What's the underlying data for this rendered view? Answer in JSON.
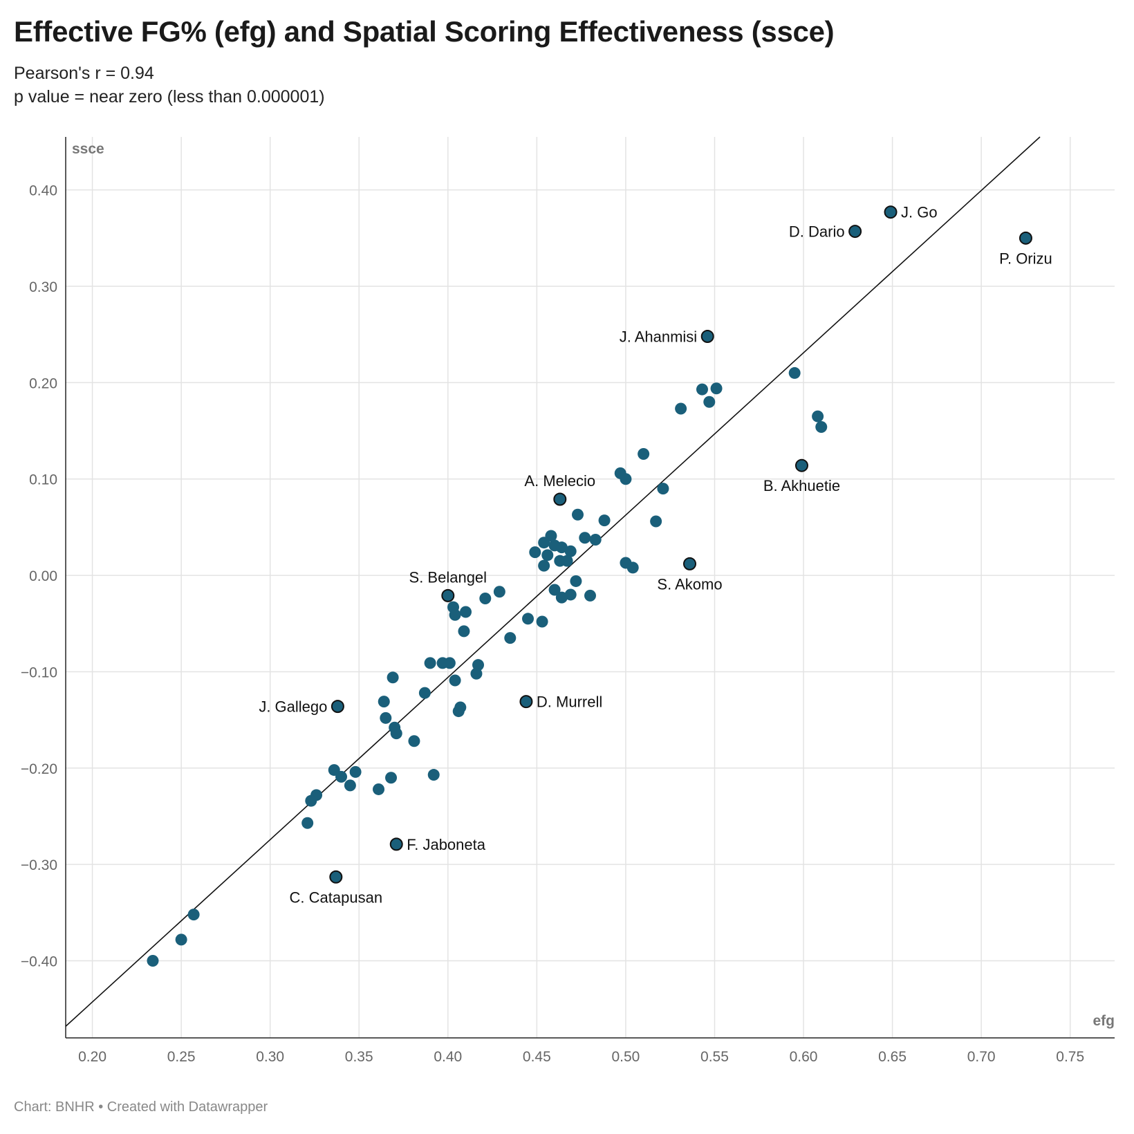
{
  "header": {
    "title": "Effective FG% (efg) and Spatial Scoring Effectiveness (ssce)",
    "subtitle_1": "Pearson's r = 0.94",
    "subtitle_2": "p value = near zero (less than 0.000001)"
  },
  "footer": {
    "source": "Chart: BNHR • Created with Datawrapper"
  },
  "colors": {
    "point": "#1a5f7a",
    "highlight_stroke": "#111111",
    "grid": "#e3e3e3",
    "trend": "#111111"
  },
  "chart_data": {
    "type": "scatter",
    "xlabel": "efg",
    "ylabel": "ssce",
    "xlim": [
      0.185,
      0.775
    ],
    "ylim": [
      -0.48,
      0.455
    ],
    "x_ticks": [
      0.2,
      0.25,
      0.3,
      0.35,
      0.4,
      0.45,
      0.5,
      0.55,
      0.6,
      0.65,
      0.7,
      0.75
    ],
    "x_tick_labels": [
      "0.20",
      "0.25",
      "0.30",
      "0.35",
      "0.40",
      "0.45",
      "0.50",
      "0.55",
      "0.60",
      "0.65",
      "0.70",
      "0.75"
    ],
    "y_ticks": [
      0.4,
      0.3,
      0.2,
      0.1,
      0.0,
      -0.1,
      -0.2,
      -0.3,
      -0.4
    ],
    "y_tick_labels": [
      "0.40",
      "0.30",
      "0.20",
      "0.10",
      "0.00",
      "−0.10",
      "−0.20",
      "−0.30",
      "−0.40"
    ],
    "grid": true,
    "trend_line": {
      "x": [
        0.185,
        0.733
      ],
      "y": [
        -0.468,
        0.455
      ]
    },
    "labeled_points": [
      {
        "name": "J. Go",
        "x": 0.649,
        "y": 0.377,
        "label_pos": "right"
      },
      {
        "name": "D. Dario",
        "x": 0.629,
        "y": 0.357,
        "label_pos": "left"
      },
      {
        "name": "P. Orizu",
        "x": 0.725,
        "y": 0.35,
        "label_pos": "below"
      },
      {
        "name": "J. Ahanmisi",
        "x": 0.546,
        "y": 0.248,
        "label_pos": "left"
      },
      {
        "name": "B. Akhuetie",
        "x": 0.599,
        "y": 0.114,
        "label_pos": "below"
      },
      {
        "name": "A. Melecio",
        "x": 0.463,
        "y": 0.079,
        "label_pos": "above"
      },
      {
        "name": "S. Akomo",
        "x": 0.536,
        "y": 0.012,
        "label_pos": "below"
      },
      {
        "name": "S. Belangel",
        "x": 0.4,
        "y": -0.021,
        "label_pos": "above"
      },
      {
        "name": "D. Murrell",
        "x": 0.444,
        "y": -0.131,
        "label_pos": "right"
      },
      {
        "name": "J. Gallego",
        "x": 0.338,
        "y": -0.136,
        "label_pos": "left"
      },
      {
        "name": "F. Jaboneta",
        "x": 0.371,
        "y": -0.279,
        "label_pos": "right"
      },
      {
        "name": "C. Catapusan",
        "x": 0.337,
        "y": -0.313,
        "label_pos": "below"
      }
    ],
    "points": [
      [
        0.595,
        0.21
      ],
      [
        0.543,
        0.193
      ],
      [
        0.551,
        0.194
      ],
      [
        0.547,
        0.18
      ],
      [
        0.531,
        0.173
      ],
      [
        0.608,
        0.165
      ],
      [
        0.61,
        0.154
      ],
      [
        0.51,
        0.126
      ],
      [
        0.497,
        0.106
      ],
      [
        0.5,
        0.1
      ],
      [
        0.521,
        0.09
      ],
      [
        0.473,
        0.063
      ],
      [
        0.488,
        0.057
      ],
      [
        0.517,
        0.056
      ],
      [
        0.458,
        0.041
      ],
      [
        0.477,
        0.039
      ],
      [
        0.483,
        0.037
      ],
      [
        0.454,
        0.034
      ],
      [
        0.46,
        0.031
      ],
      [
        0.464,
        0.029
      ],
      [
        0.469,
        0.025
      ],
      [
        0.449,
        0.024
      ],
      [
        0.456,
        0.021
      ],
      [
        0.463,
        0.015
      ],
      [
        0.467,
        0.015
      ],
      [
        0.5,
        0.013
      ],
      [
        0.454,
        0.01
      ],
      [
        0.504,
        0.008
      ],
      [
        0.472,
        -0.006
      ],
      [
        0.46,
        -0.015
      ],
      [
        0.429,
        -0.017
      ],
      [
        0.469,
        -0.02
      ],
      [
        0.48,
        -0.021
      ],
      [
        0.464,
        -0.023
      ],
      [
        0.421,
        -0.024
      ],
      [
        0.403,
        -0.033
      ],
      [
        0.41,
        -0.038
      ],
      [
        0.404,
        -0.041
      ],
      [
        0.445,
        -0.045
      ],
      [
        0.453,
        -0.048
      ],
      [
        0.409,
        -0.058
      ],
      [
        0.435,
        -0.065
      ],
      [
        0.39,
        -0.091
      ],
      [
        0.397,
        -0.091
      ],
      [
        0.401,
        -0.091
      ],
      [
        0.417,
        -0.093
      ],
      [
        0.416,
        -0.102
      ],
      [
        0.369,
        -0.106
      ],
      [
        0.404,
        -0.109
      ],
      [
        0.387,
        -0.122
      ],
      [
        0.364,
        -0.131
      ],
      [
        0.407,
        -0.137
      ],
      [
        0.406,
        -0.141
      ],
      [
        0.365,
        -0.148
      ],
      [
        0.37,
        -0.158
      ],
      [
        0.371,
        -0.164
      ],
      [
        0.381,
        -0.172
      ],
      [
        0.336,
        -0.202
      ],
      [
        0.348,
        -0.204
      ],
      [
        0.392,
        -0.207
      ],
      [
        0.34,
        -0.209
      ],
      [
        0.368,
        -0.21
      ],
      [
        0.345,
        -0.218
      ],
      [
        0.361,
        -0.222
      ],
      [
        0.326,
        -0.228
      ],
      [
        0.323,
        -0.234
      ],
      [
        0.321,
        -0.257
      ],
      [
        0.257,
        -0.352
      ],
      [
        0.25,
        -0.378
      ],
      [
        0.234,
        -0.4
      ]
    ]
  }
}
